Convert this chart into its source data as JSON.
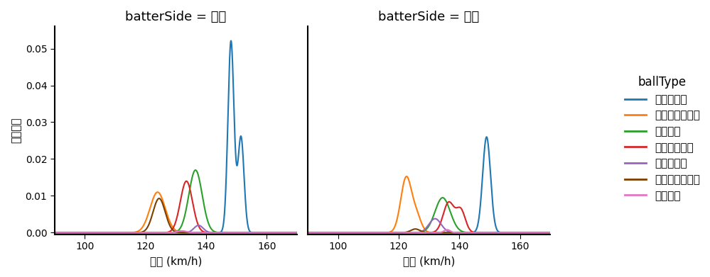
{
  "title_left": "batterSide = 左打",
  "title_right": "batterSide = 右打",
  "xlabel": "球速 (km/h)",
  "ylabel": "確率密度",
  "legend_title": "ballType",
  "xlim": [
    90,
    170
  ],
  "ylim": [
    0,
    0.055
  ],
  "yticks": [
    0.0,
    0.01,
    0.02,
    0.03,
    0.04,
    0.05
  ],
  "xticks": [
    100,
    120,
    140,
    160
  ],
  "ball_types": [
    "ストレート",
    "ナックルカーブ",
    "フォーク",
    "カットボール",
    "スライダー",
    "チェンジアップ",
    "シュート"
  ],
  "colors": [
    "#1f77b4",
    "#ff7f0e",
    "#2ca02c",
    "#d62728",
    "#9467bd",
    "#7b3f00",
    "#e377c2"
  ],
  "left_curves": [
    {
      "mean1": 148.2,
      "std1": 1.0,
      "peak1": 0.052,
      "mean2": 151.5,
      "std2": 1.0,
      "peak2": 0.026
    },
    {
      "mean1": 124.0,
      "std1": 2.5,
      "peak1": 0.011,
      "mean2": null,
      "std2": null,
      "peak2": 0
    },
    {
      "mean1": 136.5,
      "std1": 2.2,
      "peak1": 0.017,
      "mean2": null,
      "std2": null,
      "peak2": 0
    },
    {
      "mean1": 133.5,
      "std1": 2.0,
      "peak1": 0.014,
      "mean2": null,
      "std2": null,
      "peak2": 0
    },
    {
      "mean1": 137.5,
      "std1": 1.5,
      "peak1": 0.002,
      "mean2": null,
      "std2": null,
      "peak2": 0
    },
    {
      "mean1": 124.5,
      "std1": 2.0,
      "peak1": 0.0093,
      "mean2": null,
      "std2": null,
      "peak2": 0
    },
    {
      "mean1": 132.0,
      "std1": 1.5,
      "peak1": 0.0005,
      "mean2": null,
      "std2": null,
      "peak2": 0
    }
  ],
  "right_curves": [
    {
      "mean1": 149.0,
      "std1": 1.3,
      "peak1": 0.026,
      "mean2": null,
      "std2": null,
      "peak2": 0
    },
    {
      "mean1": 122.5,
      "std1": 1.8,
      "peak1": 0.015,
      "mean2": 126.0,
      "std2": 1.5,
      "peak2": 0.004
    },
    {
      "mean1": 134.5,
      "std1": 2.5,
      "peak1": 0.0095,
      "mean2": null,
      "std2": null,
      "peak2": 0
    },
    {
      "mean1": 136.5,
      "std1": 1.8,
      "peak1": 0.0082,
      "mean2": 140.5,
      "std2": 1.5,
      "peak2": 0.006
    },
    {
      "mean1": 132.0,
      "std1": 2.0,
      "peak1": 0.0038,
      "mean2": null,
      "std2": null,
      "peak2": 0
    },
    {
      "mean1": 125.5,
      "std1": 1.5,
      "peak1": 0.001,
      "mean2": null,
      "std2": null,
      "peak2": 0
    },
    {
      "mean1": 136.0,
      "std1": 1.0,
      "peak1": 0.0008,
      "mean2": null,
      "std2": null,
      "peak2": 0
    }
  ]
}
